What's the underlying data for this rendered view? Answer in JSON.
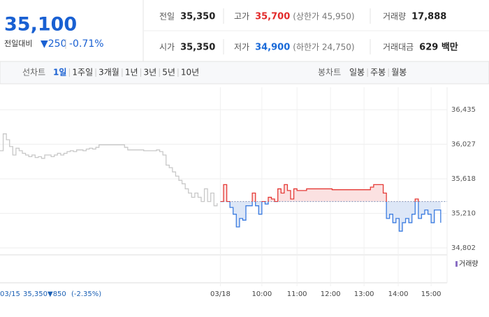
{
  "header": {
    "price": "35,100",
    "change_label": "전일대비",
    "change": "▼250",
    "change_pct": "-0.71%"
  },
  "stats": [
    {
      "label": "전일",
      "value": "35,350"
    },
    {
      "label": "고가",
      "value": "35,700",
      "note": "(상한가 45,950)"
    },
    {
      "label": "거래량",
      "value": "17,888"
    },
    {
      "label": "시가",
      "value": "35,350"
    },
    {
      "label": "저가",
      "value": "34,900",
      "note": "(하한가 24,750)"
    },
    {
      "label": "거래대금",
      "value": "629 백만"
    }
  ],
  "tabs": {
    "line_label": "선차트",
    "line_items": [
      "1일",
      "1주일",
      "3개월",
      "1년",
      "3년",
      "5년",
      "10년"
    ],
    "candle_label": "봉차트",
    "candle_items": [
      "일봉",
      "주봉",
      "월봉"
    ]
  },
  "summary": {
    "date": "03/15",
    "price": "35,350",
    "change": "▼850",
    "pct": "(-2.35%)"
  },
  "chart_data": {
    "type": "line",
    "volume_label": "거래량",
    "baseline": 35350,
    "xlim": [
      0,
      140
    ],
    "ylim": [
      34720,
      36700
    ],
    "yticks": [
      {
        "value": 36435,
        "label": "36,435"
      },
      {
        "value": 36027,
        "label": "36,027"
      },
      {
        "value": 35618,
        "label": "35,618"
      },
      {
        "value": 35210,
        "label": "35,210"
      },
      {
        "value": 34802,
        "label": "34,802"
      }
    ],
    "xticks": [
      {
        "value": 69,
        "label": "03/18"
      },
      {
        "value": 82,
        "label": "10:00"
      },
      {
        "value": 93,
        "label": "11:00"
      },
      {
        "value": 103.5,
        "label": "12:00"
      },
      {
        "value": 114,
        "label": "13:00"
      },
      {
        "value": 124.7,
        "label": "14:00"
      },
      {
        "value": 135,
        "label": "15:00"
      }
    ],
    "series": [
      {
        "name": "03/15",
        "color": "#c8c8c8",
        "values": [
          35950,
          36150,
          36080,
          36000,
          35900,
          35980,
          35950,
          35920,
          35900,
          35880,
          35900,
          35870,
          35880,
          35860,
          35900,
          35900,
          35880,
          35900,
          35920,
          35900,
          35920,
          35940,
          35950,
          35940,
          35960,
          35960,
          35950,
          35970,
          35980,
          35970,
          35990,
          36020,
          36020,
          36020,
          36020,
          36020,
          36020,
          36020,
          36020,
          35990,
          35960,
          35960,
          35960,
          35960,
          35960,
          35950,
          35950,
          35950,
          35950,
          35960,
          35940,
          35900,
          35780,
          35750,
          35700,
          35650,
          35600,
          35560,
          35500,
          35450,
          35400,
          35450,
          35400,
          35350,
          35500,
          35350,
          35450,
          35300,
          35330
        ]
      },
      {
        "name": "03/18",
        "color": "#e53935",
        "down_color": "#3a7be0",
        "values": [
          null,
          null,
          null,
          null,
          null,
          null,
          null,
          null,
          null,
          null,
          null,
          null,
          null,
          null,
          null,
          null,
          null,
          null,
          null,
          null,
          null,
          null,
          null,
          null,
          null,
          null,
          null,
          null,
          null,
          null,
          null,
          null,
          null,
          null,
          null,
          null,
          null,
          null,
          null,
          null,
          null,
          null,
          null,
          null,
          null,
          null,
          null,
          null,
          null,
          null,
          null,
          null,
          null,
          null,
          null,
          null,
          null,
          null,
          null,
          null,
          null,
          null,
          null,
          null,
          null,
          null,
          null,
          null,
          null,
          35350,
          35550,
          35350,
          35280,
          35200,
          35050,
          35150,
          35130,
          35300,
          35300,
          35450,
          35300,
          35200,
          35350,
          35320,
          35400,
          35380,
          35350,
          35500,
          35450,
          35550,
          35480,
          35380,
          35500,
          35480,
          35480,
          35480,
          35500,
          35500,
          35500,
          35500,
          35500,
          35500,
          35500,
          35500,
          35490,
          35490,
          35490,
          35490,
          35490,
          35490,
          35490,
          35490,
          35490,
          35490,
          35490,
          35490,
          35520,
          35550,
          35550,
          35550,
          35450,
          35150,
          35200,
          35100,
          35150,
          35000,
          35100,
          35150,
          35100,
          35200,
          35380,
          35150,
          35200,
          35250,
          35200,
          35100,
          35250,
          35250,
          35100
        ]
      }
    ]
  }
}
